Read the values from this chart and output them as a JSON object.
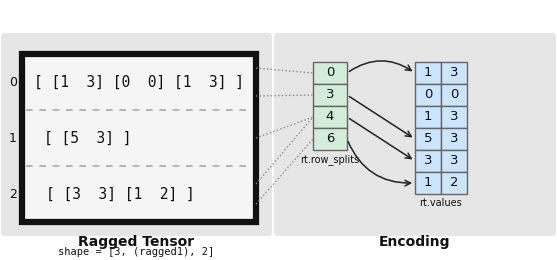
{
  "title_left": "Ragged Tensor",
  "subtitle_left": "shape = [3, (ragged1), 2]",
  "title_right": "Encoding",
  "row_labels": [
    "0",
    "1",
    "2"
  ],
  "row_splits_values": [
    "0",
    "3",
    "4",
    "6"
  ],
  "row_splits_label": "rt.row_splits",
  "values_grid": [
    [
      "1",
      "3"
    ],
    [
      "0",
      "0"
    ],
    [
      "1",
      "3"
    ],
    [
      "5",
      "3"
    ],
    [
      "3",
      "3"
    ],
    [
      "1",
      "2"
    ]
  ],
  "values_label": "rt.values",
  "bg_color_left": "#e6e6e6",
  "bg_color_right": "#e6e6e6",
  "cell_color_splits": "#d4edda",
  "cell_color_values": "#cce5ff",
  "border_color": "#111111",
  "dot_color": "#999999",
  "arrow_color": "#222222",
  "text_color": "#111111",
  "figsize": [
    5.57,
    2.6
  ],
  "dpi": 100
}
